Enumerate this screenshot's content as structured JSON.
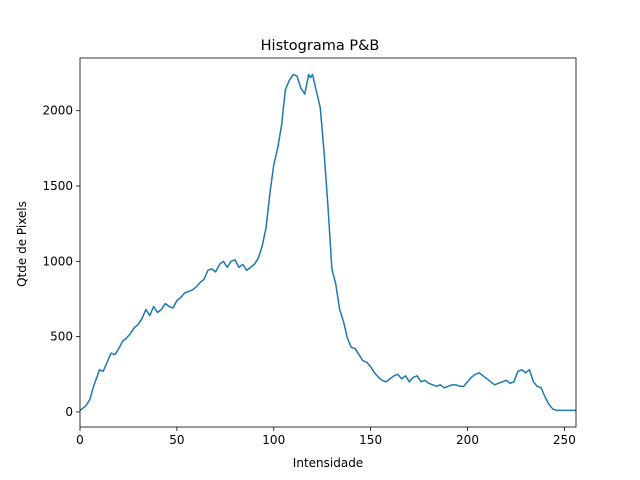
{
  "chart_data": {
    "type": "line",
    "title": "Histograma P&B",
    "xlabel": "Intensidade",
    "ylabel": "Qtde de Pixels",
    "xlim": [
      0,
      256
    ],
    "ylim": [
      -100,
      2350
    ],
    "xticks": [
      0,
      50,
      100,
      150,
      200,
      250
    ],
    "yticks": [
      0,
      500,
      1000,
      1500,
      2000
    ],
    "grid": false,
    "line_color": "#1f77b4",
    "series": [
      {
        "x": [
          0,
          3,
          5,
          7,
          9,
          10,
          12,
          14,
          16,
          18,
          20,
          22,
          24,
          26,
          28,
          30,
          32,
          34,
          36,
          38,
          40,
          42,
          44,
          46,
          48,
          50,
          52,
          54,
          56,
          58,
          60,
          62,
          64,
          66,
          68,
          70,
          72,
          74,
          76,
          78,
          80,
          82,
          84,
          86,
          88,
          90,
          92,
          94,
          96,
          98,
          100,
          102,
          104,
          106,
          108,
          110,
          112,
          114,
          116,
          118,
          119,
          120,
          122,
          124,
          126,
          128,
          130,
          132,
          134,
          136,
          138,
          140,
          142,
          144,
          146,
          148,
          150,
          152,
          154,
          156,
          158,
          160,
          162,
          164,
          166,
          168,
          170,
          172,
          174,
          176,
          178,
          180,
          182,
          184,
          186,
          188,
          190,
          192,
          194,
          196,
          198,
          200,
          202,
          204,
          206,
          208,
          210,
          212,
          214,
          216,
          218,
          220,
          222,
          224,
          226,
          228,
          230,
          232,
          234,
          236,
          238,
          240,
          242,
          244,
          246,
          248,
          250,
          252,
          254,
          256
        ],
        "y": [
          10,
          40,
          80,
          170,
          240,
          280,
          270,
          330,
          390,
          380,
          420,
          470,
          490,
          520,
          560,
          580,
          620,
          680,
          640,
          700,
          660,
          680,
          720,
          700,
          690,
          740,
          760,
          790,
          800,
          810,
          830,
          860,
          880,
          940,
          950,
          930,
          980,
          1000,
          960,
          1000,
          1010,
          960,
          980,
          940,
          960,
          980,
          1020,
          1100,
          1220,
          1450,
          1640,
          1750,
          1900,
          2140,
          2200,
          2240,
          2230,
          2150,
          2110,
          2240,
          2220,
          2240,
          2130,
          2020,
          1720,
          1360,
          950,
          850,
          680,
          600,
          490,
          430,
          420,
          380,
          340,
          330,
          300,
          260,
          230,
          210,
          200,
          220,
          240,
          250,
          220,
          240,
          200,
          230,
          240,
          200,
          210,
          190,
          180,
          170,
          180,
          160,
          170,
          180,
          180,
          170,
          170,
          200,
          230,
          250,
          260,
          240,
          220,
          200,
          180,
          190,
          200,
          210,
          190,
          200,
          270,
          280,
          260,
          280,
          200,
          170,
          160,
          100,
          50,
          20,
          10,
          10,
          10,
          10,
          10,
          10
        ]
      }
    ]
  }
}
